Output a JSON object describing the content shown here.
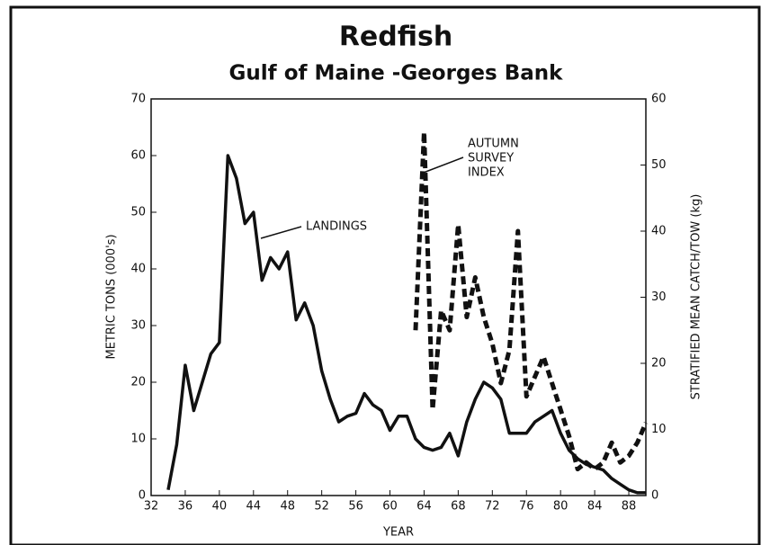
{
  "chart_data": {
    "type": "line",
    "title": "Redfish",
    "subtitle": "Gulf of Maine -Georges Bank",
    "x_label": "YEAR",
    "y_label": "METRIC TONS (000's)",
    "y2_label": "STRATIFIED MEAN CATCH/TOW (kg)",
    "annotations": [
      [
        "LANDINGS"
      ],
      [
        "AUTUMN",
        "SURVEY",
        "INDEX"
      ]
    ],
    "xlim": [
      32,
      90
    ],
    "xticks": [
      32,
      36,
      40,
      44,
      48,
      52,
      56,
      60,
      64,
      68,
      72,
      76,
      80,
      84,
      88
    ],
    "ylim": [
      0,
      70
    ],
    "yticks": [
      0,
      10,
      20,
      30,
      40,
      50,
      60,
      70
    ],
    "y2lim": [
      0,
      60
    ],
    "y2ticks": [
      0,
      10,
      20,
      30,
      40,
      50,
      60
    ],
    "series": [
      {
        "name": "LANDINGS",
        "color": "#111111",
        "style": "solid",
        "x": [
          34,
          35,
          36,
          37,
          38,
          39,
          40,
          41,
          42,
          43,
          44,
          45,
          46,
          47,
          48,
          49,
          50,
          51,
          52,
          53,
          54,
          55,
          56,
          57,
          58,
          59,
          60,
          61,
          62,
          63,
          64,
          65,
          66,
          67,
          68,
          69,
          70,
          71,
          72,
          73,
          74,
          75,
          76,
          77,
          78,
          79,
          80,
          81,
          82,
          83,
          84,
          85,
          86,
          87,
          88,
          89,
          90
        ],
        "values": [
          1,
          9,
          23,
          15,
          20,
          25,
          27,
          60,
          56,
          48,
          50,
          38,
          42,
          40,
          43,
          31,
          34,
          30,
          22,
          17,
          13,
          14,
          14.5,
          18,
          16,
          15,
          11.5,
          14,
          14,
          10,
          8.5,
          8,
          8.5,
          11,
          7,
          13,
          17,
          20,
          19,
          17,
          11,
          11,
          11,
          13,
          14,
          15,
          11,
          8,
          6.5,
          5.5,
          5,
          4.5,
          3,
          2,
          1,
          0.5,
          0.5
        ]
      },
      {
        "name": "AUTUMN SURVEY INDEX",
        "color": "#111111",
        "style": "dashed",
        "axis": "y2",
        "x": [
          63,
          64,
          65,
          66,
          67,
          68,
          69,
          70,
          71,
          72,
          73,
          74,
          75,
          76,
          77,
          78,
          79,
          80,
          81,
          82,
          83,
          84,
          85,
          86,
          87,
          88,
          89,
          90
        ],
        "values": [
          25,
          55,
          13,
          28,
          25,
          41,
          27,
          33,
          27,
          23,
          17,
          22,
          40,
          15,
          18,
          21,
          17,
          13,
          9,
          4,
          5,
          4,
          5,
          8,
          5,
          6,
          8,
          11
        ]
      }
    ]
  }
}
